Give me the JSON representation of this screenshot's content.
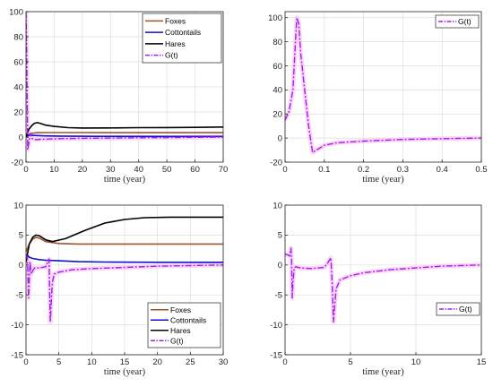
{
  "colors": {
    "foxes": "#a0522d",
    "cottontails": "#1010d0",
    "hares": "#000000",
    "g": "#a020f0",
    "halo": "#f6b9ee"
  },
  "chart_data": [
    {
      "type": "line",
      "xlabel": "time (year)",
      "xlim": [
        0,
        70
      ],
      "ylim": [
        -20,
        100
      ],
      "xticks": [
        0,
        10,
        20,
        30,
        40,
        50,
        60,
        70
      ],
      "yticks": [
        -20,
        0,
        20,
        40,
        60,
        80,
        100
      ],
      "grid": true,
      "legend_position": "top-right",
      "series": [
        {
          "name": "Foxes",
          "key": "foxes",
          "style": "solid",
          "x": [
            0,
            2,
            4,
            8,
            15,
            30,
            50,
            70
          ],
          "y": [
            1,
            3,
            3.5,
            3.6,
            3.6,
            3.5,
            3.5,
            3.5
          ]
        },
        {
          "name": "Cottontails",
          "key": "cottontails",
          "style": "solid",
          "x": [
            0,
            1,
            3,
            6,
            12,
            25,
            50,
            70
          ],
          "y": [
            0.5,
            1.5,
            1.3,
            1.0,
            0.8,
            0.6,
            0.5,
            0.5
          ]
        },
        {
          "name": "Hares",
          "key": "hares",
          "style": "solid",
          "x": [
            0,
            1,
            2,
            3,
            4,
            5,
            7,
            10,
            15,
            20,
            30,
            40,
            50,
            60,
            70
          ],
          "y": [
            0,
            6,
            9,
            11,
            11.5,
            11,
            9.5,
            8.5,
            7.5,
            7.2,
            7.3,
            7.5,
            7.6,
            7.7,
            8
          ]
        },
        {
          "name": "G(t)",
          "key": "g",
          "style": "dashdot",
          "x": [
            0,
            0.3,
            0.6,
            1.0,
            1.5,
            2,
            3,
            4,
            5,
            8,
            12,
            20,
            30,
            40,
            50,
            60,
            70
          ],
          "y": [
            100,
            60,
            -10,
            -5,
            3,
            -1,
            -2,
            -2,
            -1.8,
            -1.6,
            -1.3,
            -1,
            -0.8,
            -0.6,
            -0.4,
            -0.2,
            0
          ]
        }
      ]
    },
    {
      "type": "line",
      "xlabel": "time (year)",
      "xlim": [
        0,
        0.5
      ],
      "ylim": [
        -20,
        105
      ],
      "xticks": [
        0,
        0.1,
        0.2,
        0.3,
        0.4,
        0.5
      ],
      "yticks": [
        -20,
        0,
        20,
        40,
        60,
        80,
        100
      ],
      "grid": true,
      "legend_position": "top-right",
      "series": [
        {
          "name": "G(t)",
          "key": "g",
          "style": "dashdot",
          "x": [
            0,
            0.01,
            0.02,
            0.025,
            0.03,
            0.035,
            0.04,
            0.05,
            0.06,
            0.07,
            0.08,
            0.1,
            0.13,
            0.2,
            0.3,
            0.4,
            0.5
          ],
          "y": [
            15,
            22,
            40,
            70,
            100,
            95,
            70,
            40,
            10,
            -12,
            -10,
            -6,
            -4,
            -2.5,
            -1.2,
            -0.5,
            0
          ]
        }
      ]
    },
    {
      "type": "line",
      "xlabel": "time (year)",
      "xlim": [
        0,
        30
      ],
      "ylim": [
        -15,
        10
      ],
      "xticks": [
        0,
        5,
        10,
        15,
        20,
        25,
        30
      ],
      "yticks": [
        -15,
        -10,
        -5,
        0,
        5,
        10
      ],
      "grid": true,
      "legend_position": "bottom-right",
      "series": [
        {
          "name": "Foxes",
          "key": "foxes",
          "style": "solid",
          "x": [
            0,
            0.5,
            1,
            1.5,
            2,
            3,
            5,
            8,
            12,
            20,
            30
          ],
          "y": [
            2.2,
            3.5,
            4.3,
            4.6,
            4.5,
            3.9,
            3.6,
            3.5,
            3.5,
            3.5,
            3.5
          ]
        },
        {
          "name": "Cottontails",
          "key": "cottontails",
          "style": "solid",
          "x": [
            0,
            0.5,
            1,
            2,
            3,
            5,
            8,
            12,
            20,
            30
          ],
          "y": [
            1.8,
            1.3,
            1.1,
            0.9,
            0.8,
            0.7,
            0.55,
            0.5,
            0.45,
            0.45
          ]
        },
        {
          "name": "Hares",
          "key": "hares",
          "style": "solid",
          "x": [
            0,
            0.5,
            1,
            1.5,
            2,
            3,
            4,
            6,
            9,
            12,
            15,
            18,
            22,
            26,
            30
          ],
          "y": [
            0.5,
            3.5,
            4.6,
            5,
            4.9,
            4.2,
            3.9,
            4.4,
            5.8,
            7,
            7.6,
            7.9,
            8.0,
            8.0,
            8.0
          ]
        },
        {
          "name": "G(t)",
          "key": "g",
          "style": "dashdot",
          "x": [
            0,
            0.2,
            0.4,
            0.6,
            0.8,
            1.0,
            1.3,
            2,
            3,
            3.5,
            3.7,
            4.0,
            4.3,
            5,
            7,
            10,
            15,
            20,
            25,
            30
          ],
          "y": [
            1.8,
            1.2,
            -5.5,
            0.5,
            -1.5,
            -1.0,
            -0.5,
            -0.5,
            -0.3,
            1,
            -9.5,
            -3,
            -1.5,
            -1.2,
            -0.8,
            -0.6,
            -0.4,
            -0.2,
            -0.1,
            0
          ]
        }
      ]
    },
    {
      "type": "line",
      "xlabel": "time (year)",
      "xlim": [
        0,
        15
      ],
      "ylim": [
        -15,
        10
      ],
      "xticks": [
        0,
        5,
        10,
        15
      ],
      "yticks": [
        -15,
        -10,
        -5,
        0,
        5,
        10
      ],
      "grid": true,
      "legend_position": "bottom-right",
      "series": [
        {
          "name": "G(t)",
          "key": "g",
          "style": "dashdot",
          "x": [
            0,
            0.2,
            0.35,
            0.45,
            0.5,
            0.55,
            0.6,
            0.7,
            0.8,
            1.2,
            2,
            3,
            3.3,
            3.5,
            3.6,
            3.7,
            3.9,
            4.2,
            5,
            6,
            8,
            10,
            12,
            15
          ],
          "y": [
            1.8,
            1.7,
            1.5,
            2.8,
            1,
            -5.5,
            -3,
            -0.5,
            -0.3,
            -0.5,
            -0.6,
            -0.4,
            0.5,
            1.2,
            -3,
            -9.5,
            -4,
            -2.5,
            -1.8,
            -1.3,
            -0.8,
            -0.5,
            -0.2,
            0
          ]
        }
      ]
    }
  ]
}
